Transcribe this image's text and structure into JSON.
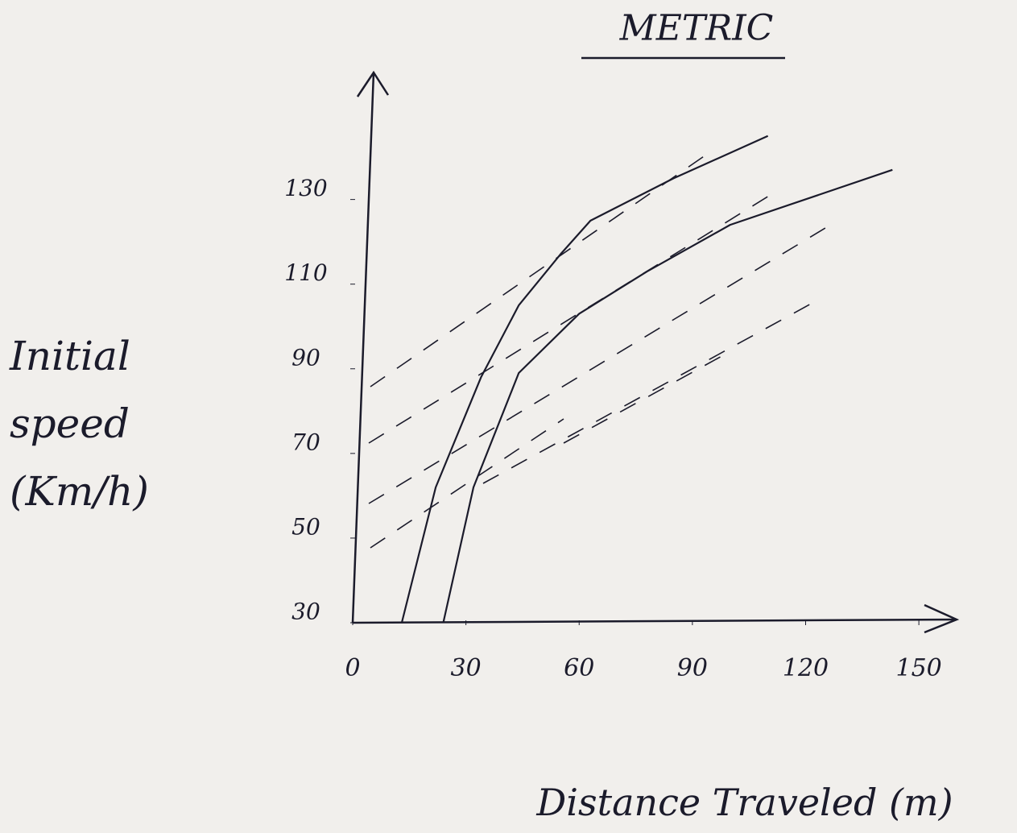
{
  "chart_data": {
    "type": "line",
    "title": "METRIC",
    "x_label": "Distance Traveled (m)",
    "y_label": "Initial speed (Km/h)",
    "xlim": [
      0,
      160
    ],
    "xticks": [
      0,
      30,
      60,
      90,
      120,
      150
    ],
    "ylim": [
      30,
      160
    ],
    "yticks": [
      30,
      50,
      70,
      90,
      110,
      130
    ],
    "series": [
      {
        "color": "#1b1b2b",
        "x": [
          13,
          22,
          34,
          44,
          55,
          63,
          85,
          110
        ],
        "values": [
          30,
          62,
          88,
          105,
          117,
          125,
          135,
          145
        ]
      },
      {
        "color": "#1b1b2b",
        "x": [
          24,
          32,
          44,
          60,
          78,
          100,
          143
        ],
        "values": [
          30,
          62,
          89,
          103,
          113,
          124,
          137
        ]
      }
    ]
  }
}
